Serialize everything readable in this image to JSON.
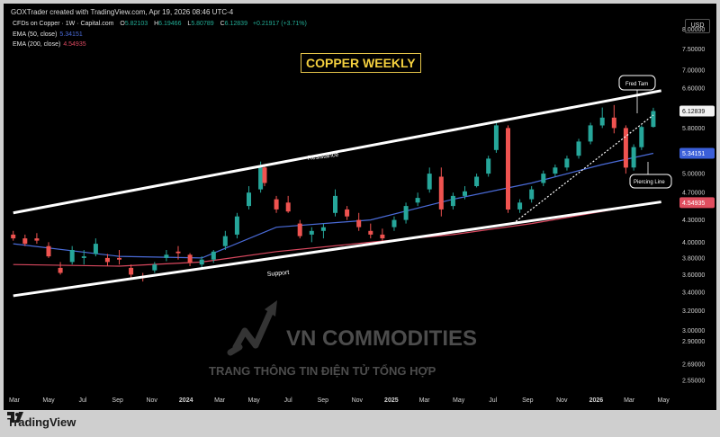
{
  "header": {
    "attribution": "GOXTrader created with TradingView.com, Apr 19, 2026 08:46 UTC-4"
  },
  "legend": {
    "symbol": "CFDs on Copper · 1W · Capital.com",
    "ohlc": [
      {
        "k": "O",
        "v": "5.82103"
      },
      {
        "k": "H",
        "v": "6.19466"
      },
      {
        "k": "L",
        "v": "5.80789"
      },
      {
        "k": "C",
        "v": "6.12839"
      }
    ],
    "change": "+0.21917 (+3.71%)",
    "ema50": {
      "label": "EMA (50, close)",
      "value": "5.34151",
      "color": "#4a6bd8"
    },
    "ema200": {
      "label": "EMA (200, close)",
      "value": "4.54935",
      "color": "#d9485f"
    }
  },
  "currency": "USD",
  "title": "COPPER WEEKLY",
  "annotations": {
    "resistance": "Resistance",
    "support": "Support",
    "fred_tam": "Fred Tam",
    "piercing": "Piercing Line"
  },
  "watermark": {
    "brand": "VN COMMODITIES",
    "tagline": "TRANG THÔNG TIN ĐIỆN TỬ TỔNG HỢP"
  },
  "footer": {
    "brand": "TradingView"
  },
  "price_labels": {
    "last": "6.12839",
    "ema50": "5.34151",
    "ema200": "4.54935"
  },
  "colors": {
    "up": "#26a69a",
    "down": "#ef5350",
    "last_bg": "#f2f2f2",
    "ema50_bg": "#3b5fd9",
    "ema200_bg": "#e04e5f",
    "title": "#f4d03f"
  },
  "chart_data": {
    "type": "candlestick",
    "title": "COPPER WEEKLY",
    "y_axis": {
      "scale": "log",
      "ticks": [
        "8.00000",
        "7.50000",
        "7.00000",
        "6.60000",
        "5.80000",
        "5.40000",
        "5.00000",
        "4.70000",
        "4.30000",
        "4.00000",
        "3.80000",
        "3.60000",
        "3.40000",
        "3.20000",
        "3.00000",
        "2.90000",
        "2.69000",
        "2.55000"
      ]
    },
    "x_axis": {
      "ticks": [
        "Mar",
        "May",
        "Jul",
        "Sep",
        "Nov",
        "2024",
        "Mar",
        "May",
        "Jul",
        "Sep",
        "Nov",
        "2025",
        "Mar",
        "May",
        "Jul",
        "Sep",
        "Nov",
        "2026",
        "Mar",
        "May"
      ]
    },
    "candles": [
      {
        "x": "2023-02-27",
        "o": 4.1,
        "h": 4.15,
        "l": 4.02,
        "c": 4.05
      },
      {
        "x": "2023-03-20",
        "o": 4.05,
        "h": 4.1,
        "l": 3.95,
        "c": 3.98
      },
      {
        "x": "2023-04-10",
        "o": 4.05,
        "h": 4.12,
        "l": 3.98,
        "c": 4.02
      },
      {
        "x": "2023-05-01",
        "o": 3.95,
        "h": 4.0,
        "l": 3.8,
        "c": 3.82
      },
      {
        "x": "2023-05-22",
        "o": 3.68,
        "h": 3.75,
        "l": 3.6,
        "c": 3.62
      },
      {
        "x": "2023-06-12",
        "o": 3.75,
        "h": 3.95,
        "l": 3.72,
        "c": 3.9
      },
      {
        "x": "2023-07-03",
        "o": 3.8,
        "h": 3.9,
        "l": 3.72,
        "c": 3.82
      },
      {
        "x": "2023-07-24",
        "o": 3.85,
        "h": 4.05,
        "l": 3.82,
        "c": 3.98
      },
      {
        "x": "2023-08-14",
        "o": 3.8,
        "h": 3.85,
        "l": 3.7,
        "c": 3.75
      },
      {
        "x": "2023-09-04",
        "o": 3.8,
        "h": 3.9,
        "l": 3.72,
        "c": 3.78
      },
      {
        "x": "2023-09-25",
        "o": 3.68,
        "h": 3.72,
        "l": 3.56,
        "c": 3.6
      },
      {
        "x": "2023-10-16",
        "o": 3.58,
        "h": 3.62,
        "l": 3.52,
        "c": 3.56
      },
      {
        "x": "2023-11-06",
        "o": 3.65,
        "h": 3.75,
        "l": 3.62,
        "c": 3.72
      },
      {
        "x": "2023-11-27",
        "o": 3.8,
        "h": 3.9,
        "l": 3.76,
        "c": 3.84
      },
      {
        "x": "2023-12-18",
        "o": 3.88,
        "h": 3.95,
        "l": 3.78,
        "c": 3.86
      },
      {
        "x": "2024-01-08",
        "o": 3.84,
        "h": 3.86,
        "l": 3.7,
        "c": 3.74
      },
      {
        "x": "2024-01-29",
        "o": 3.72,
        "h": 3.82,
        "l": 3.68,
        "c": 3.78
      },
      {
        "x": "2024-02-19",
        "o": 3.78,
        "h": 3.9,
        "l": 3.74,
        "c": 3.88
      },
      {
        "x": "2024-03-11",
        "o": 3.95,
        "h": 4.15,
        "l": 3.9,
        "c": 4.08
      },
      {
        "x": "2024-04-01",
        "o": 4.1,
        "h": 4.4,
        "l": 4.05,
        "c": 4.35
      },
      {
        "x": "2024-04-22",
        "o": 4.5,
        "h": 4.8,
        "l": 4.45,
        "c": 4.7
      },
      {
        "x": "2024-05-13",
        "o": 4.75,
        "h": 5.2,
        "l": 4.7,
        "c": 5.1
      },
      {
        "x": "2024-05-20",
        "o": 5.1,
        "h": 5.15,
        "l": 4.8,
        "c": 4.85
      },
      {
        "x": "2024-06-10",
        "o": 4.6,
        "h": 4.65,
        "l": 4.4,
        "c": 4.45
      },
      {
        "x": "2024-07-01",
        "o": 4.55,
        "h": 4.65,
        "l": 4.4,
        "c": 4.42
      },
      {
        "x": "2024-07-22",
        "o": 4.25,
        "h": 4.3,
        "l": 4.05,
        "c": 4.08
      },
      {
        "x": "2024-08-12",
        "o": 4.1,
        "h": 4.2,
        "l": 4.0,
        "c": 4.15
      },
      {
        "x": "2024-09-02",
        "o": 4.15,
        "h": 4.25,
        "l": 4.05,
        "c": 4.2
      },
      {
        "x": "2024-09-23",
        "o": 4.4,
        "h": 4.75,
        "l": 4.35,
        "c": 4.65
      },
      {
        "x": "2024-10-14",
        "o": 4.45,
        "h": 4.5,
        "l": 4.3,
        "c": 4.35
      },
      {
        "x": "2024-11-04",
        "o": 4.3,
        "h": 4.4,
        "l": 4.15,
        "c": 4.2
      },
      {
        "x": "2024-11-25",
        "o": 4.15,
        "h": 4.25,
        "l": 4.05,
        "c": 4.1
      },
      {
        "x": "2024-12-16",
        "o": 4.1,
        "h": 4.18,
        "l": 4.02,
        "c": 4.05
      },
      {
        "x": "2025-01-06",
        "o": 4.2,
        "h": 4.35,
        "l": 4.15,
        "c": 4.3
      },
      {
        "x": "2025-01-27",
        "o": 4.3,
        "h": 4.55,
        "l": 4.25,
        "c": 4.5
      },
      {
        "x": "2025-02-17",
        "o": 4.55,
        "h": 4.7,
        "l": 4.5,
        "c": 4.62
      },
      {
        "x": "2025-03-10",
        "o": 4.75,
        "h": 5.1,
        "l": 4.7,
        "c": 5.0
      },
      {
        "x": "2025-03-31",
        "o": 4.95,
        "h": 5.1,
        "l": 4.35,
        "c": 4.45
      },
      {
        "x": "2025-04-21",
        "o": 4.5,
        "h": 4.7,
        "l": 4.45,
        "c": 4.65
      },
      {
        "x": "2025-05-12",
        "o": 4.65,
        "h": 4.8,
        "l": 4.6,
        "c": 4.72
      },
      {
        "x": "2025-06-02",
        "o": 4.8,
        "h": 5.0,
        "l": 4.78,
        "c": 4.95
      },
      {
        "x": "2025-06-23",
        "o": 5.0,
        "h": 5.3,
        "l": 4.95,
        "c": 5.25
      },
      {
        "x": "2025-07-07",
        "o": 5.4,
        "h": 5.9,
        "l": 5.35,
        "c": 5.85
      },
      {
        "x": "2025-07-28",
        "o": 5.8,
        "h": 5.85,
        "l": 4.4,
        "c": 4.45
      },
      {
        "x": "2025-08-18",
        "o": 4.45,
        "h": 4.6,
        "l": 4.4,
        "c": 4.55
      },
      {
        "x": "2025-09-08",
        "o": 4.6,
        "h": 4.8,
        "l": 4.55,
        "c": 4.75
      },
      {
        "x": "2025-09-29",
        "o": 4.85,
        "h": 5.05,
        "l": 4.8,
        "c": 5.0
      },
      {
        "x": "2025-10-20",
        "o": 5.0,
        "h": 5.15,
        "l": 4.95,
        "c": 5.1
      },
      {
        "x": "2025-11-10",
        "o": 5.1,
        "h": 5.3,
        "l": 5.05,
        "c": 5.25
      },
      {
        "x": "2025-12-01",
        "o": 5.3,
        "h": 5.6,
        "l": 5.25,
        "c": 5.55
      },
      {
        "x": "2025-12-22",
        "o": 5.55,
        "h": 5.9,
        "l": 5.5,
        "c": 5.85
      },
      {
        "x": "2026-01-12",
        "o": 5.85,
        "h": 6.2,
        "l": 5.8,
        "c": 6.0
      },
      {
        "x": "2026-02-02",
        "o": 6.0,
        "h": 6.25,
        "l": 5.7,
        "c": 5.8
      },
      {
        "x": "2026-02-23",
        "o": 5.8,
        "h": 5.85,
        "l": 5.0,
        "c": 5.1
      },
      {
        "x": "2026-03-09",
        "o": 5.1,
        "h": 5.5,
        "l": 5.05,
        "c": 5.45
      },
      {
        "x": "2026-03-23",
        "o": 5.45,
        "h": 5.85,
        "l": 5.4,
        "c": 5.82
      },
      {
        "x": "2026-04-13",
        "o": 5.82103,
        "h": 6.19466,
        "l": 5.80789,
        "c": 6.12839
      }
    ],
    "ema50": [
      {
        "x": "2023-02-27",
        "y": 3.98
      },
      {
        "x": "2023-09-04",
        "y": 3.82
      },
      {
        "x": "2024-01-29",
        "y": 3.8
      },
      {
        "x": "2024-06-10",
        "y": 4.2
      },
      {
        "x": "2024-11-25",
        "y": 4.3
      },
      {
        "x": "2025-04-21",
        "y": 4.6
      },
      {
        "x": "2025-09-08",
        "y": 4.85
      },
      {
        "x": "2026-01-12",
        "y": 5.15
      },
      {
        "x": "2026-04-13",
        "y": 5.34151
      }
    ],
    "ema200": [
      {
        "x": "2023-02-27",
        "y": 3.72
      },
      {
        "x": "2023-09-04",
        "y": 3.7
      },
      {
        "x": "2024-01-29",
        "y": 3.75
      },
      {
        "x": "2024-06-10",
        "y": 3.88
      },
      {
        "x": "2024-11-25",
        "y": 4.0
      },
      {
        "x": "2025-04-21",
        "y": 4.1
      },
      {
        "x": "2025-09-08",
        "y": 4.25
      },
      {
        "x": "2026-01-12",
        "y": 4.42
      },
      {
        "x": "2026-04-13",
        "y": 4.54935
      }
    ],
    "resistance_line": [
      {
        "x": "2023-02-27",
        "y": 4.4
      },
      {
        "x": "2026-04-27",
        "y": 6.55
      }
    ],
    "support_line": [
      {
        "x": "2023-02-27",
        "y": 3.36
      },
      {
        "x": "2026-04-27",
        "y": 4.56
      }
    ],
    "dotted_trendline": [
      {
        "x": "2025-08-11",
        "y": 4.28
      },
      {
        "x": "2026-04-13",
        "y": 6.05
      }
    ]
  }
}
